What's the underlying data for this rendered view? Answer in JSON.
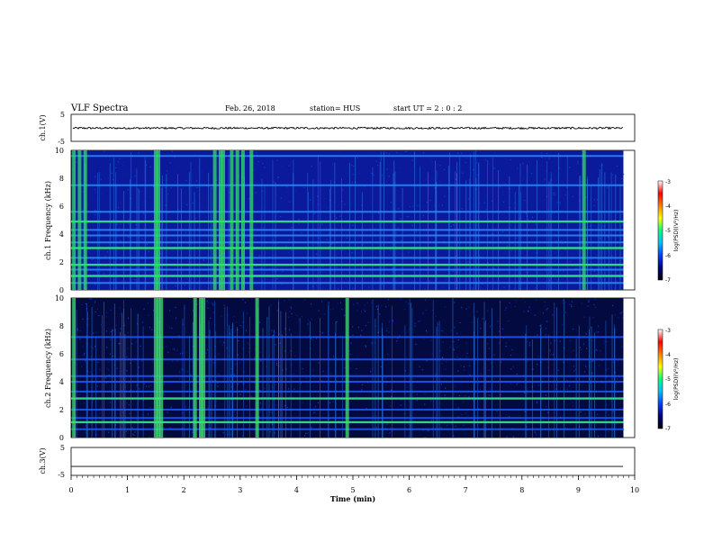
{
  "header": {
    "title": "VLF Spectra",
    "date": "Feb. 26, 2018",
    "station": "station= HUS",
    "start": "start UT = 2 : 0 : 2"
  },
  "colors": {
    "spectrogram_scale": [
      "#000000",
      "#000080",
      "#0040ff",
      "#00c0ff",
      "#00ff80",
      "#ffff00",
      "#ff8000",
      "#ff0000",
      "#ffffff"
    ],
    "trace": "#000000"
  },
  "chart_data": [
    {
      "type": "line",
      "panel": "ch1-waveform",
      "ylabel": "ch.1(V)",
      "ylim": [
        -5,
        5
      ],
      "yticks": [
        "5",
        "-5"
      ],
      "xlim": [
        0,
        10
      ],
      "series": [
        {
          "values_description": "",
          "mean": -0.1,
          "amplitude": 0.35
        }
      ]
    },
    {
      "type": "heatmap",
      "panel": "ch1-spectrogram",
      "ylabel": "ch.1 Frequency (kHz)",
      "ylim": [
        0,
        10
      ],
      "yticks": [
        "0",
        "2",
        "4",
        "6",
        "8",
        "10"
      ],
      "xlim": [
        0,
        9.8
      ],
      "colorbar": {
        "label": "log(PSD)(V²/Hz)",
        "range": [
          -7,
          -3
        ],
        "ticks": [
          "-3",
          "-4",
          "-5",
          "-6",
          "-7"
        ]
      },
      "bands_khz": [
        0.5,
        1.0,
        1.45,
        1.8,
        2.3,
        3.0,
        3.4,
        3.9,
        4.3,
        4.9,
        5.6,
        7.5,
        9.6
      ],
      "bright_bands_khz": [
        1.0,
        1.8,
        3.0,
        4.9
      ],
      "burst_times_min": [
        0.05,
        0.15,
        0.25,
        1.5,
        1.55,
        2.55,
        2.65,
        2.7,
        2.85,
        2.95,
        3.05,
        3.2,
        9.1
      ]
    },
    {
      "type": "heatmap",
      "panel": "ch2-spectrogram",
      "ylabel": "ch.2 Frequency (kHz)",
      "ylim": [
        0,
        10
      ],
      "yticks": [
        "0",
        "2",
        "4",
        "6",
        "8",
        "10"
      ],
      "xlim": [
        0,
        9.8
      ],
      "colorbar": {
        "label": "log(PSD)(V²/Hz)",
        "range": [
          -7,
          -3
        ],
        "ticks": [
          "-3",
          "-4",
          "-5",
          "-6",
          "-7"
        ]
      },
      "bands_khz": [
        0.6,
        1.1,
        1.4,
        2.0,
        2.8,
        3.3,
        4.0,
        4.4,
        5.6,
        7.2
      ],
      "bright_bands_khz": [
        1.1,
        2.8
      ],
      "burst_times_min": [
        0.05,
        1.5,
        1.55,
        1.6,
        2.2,
        2.3,
        2.35,
        3.3,
        4.9
      ]
    },
    {
      "type": "line",
      "panel": "ch3-waveform",
      "ylabel": "ch.3(V)",
      "ylim": [
        -5,
        5
      ],
      "yticks": [
        "5",
        "-5"
      ],
      "xlim": [
        0,
        10
      ],
      "series": [
        {
          "values_description": "",
          "mean": -1.8,
          "amplitude": 0
        }
      ]
    }
  ],
  "xaxis": {
    "label": "Time (min)",
    "ticks": [
      "0",
      "1",
      "2",
      "3",
      "4",
      "5",
      "6",
      "7",
      "8",
      "9",
      "10"
    ]
  }
}
